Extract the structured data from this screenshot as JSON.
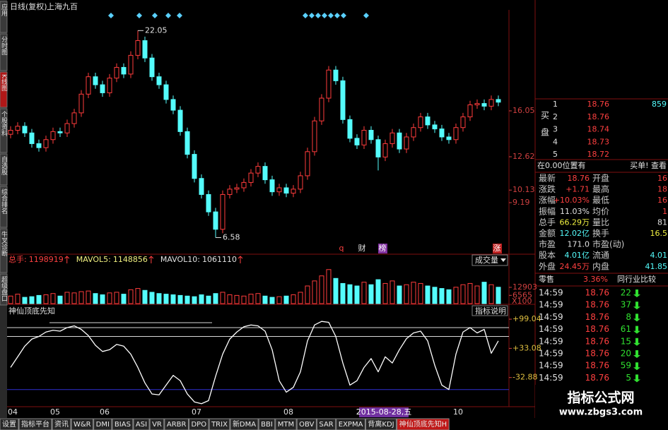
{
  "header": {
    "period": "日线(复权)",
    "stock": "上海九百"
  },
  "side_tabs": [
    "应用",
    "分时图",
    "K线图",
    "个股资料",
    "自选股",
    "综合排名",
    "牛叉诊断",
    "超级盘口"
  ],
  "price_chart": {
    "candles": [
      [
        14.3,
        14.9,
        14.0,
        14.6
      ],
      [
        14.6,
        15.2,
        14.3,
        14.9
      ],
      [
        14.9,
        15.2,
        14.1,
        14.4
      ],
      [
        14.4,
        14.7,
        13.3,
        13.6
      ],
      [
        13.6,
        13.9,
        13.0,
        13.3
      ],
      [
        13.3,
        14.2,
        13.0,
        13.9
      ],
      [
        13.9,
        14.8,
        13.6,
        14.5
      ],
      [
        14.5,
        14.8,
        14.1,
        14.4
      ],
      [
        14.4,
        15.4,
        14.1,
        15.1
      ],
      [
        15.1,
        16.2,
        14.8,
        15.9
      ],
      [
        15.9,
        17.6,
        15.6,
        17.3
      ],
      [
        17.3,
        18.9,
        17.0,
        18.6
      ],
      [
        18.6,
        18.9,
        17.7,
        18.0
      ],
      [
        18.0,
        18.3,
        17.1,
        17.4
      ],
      [
        17.4,
        18.8,
        17.1,
        18.5
      ],
      [
        18.5,
        19.6,
        18.2,
        19.3
      ],
      [
        19.3,
        19.6,
        18.5,
        18.8
      ],
      [
        18.8,
        20.5,
        18.5,
        20.2
      ],
      [
        20.2,
        22.05,
        19.9,
        21.3
      ],
      [
        21.3,
        21.6,
        19.7,
        20.0
      ],
      [
        20.0,
        20.3,
        18.3,
        18.6
      ],
      [
        18.6,
        18.9,
        17.7,
        18.0
      ],
      [
        18.0,
        18.3,
        16.6,
        16.9
      ],
      [
        16.9,
        17.2,
        15.8,
        16.1
      ],
      [
        16.1,
        16.4,
        14.2,
        14.5
      ],
      [
        14.5,
        14.8,
        12.5,
        12.8
      ],
      [
        12.8,
        13.1,
        10.7,
        11.0
      ],
      [
        11.0,
        11.3,
        9.5,
        9.8
      ],
      [
        9.8,
        10.1,
        8.2,
        8.5
      ],
      [
        8.5,
        8.8,
        6.58,
        7.2
      ],
      [
        7.2,
        10.1,
        6.9,
        9.8
      ],
      [
        9.8,
        10.5,
        9.5,
        10.2
      ],
      [
        10.2,
        10.6,
        9.9,
        10.3
      ],
      [
        10.3,
        11.0,
        10.0,
        10.7
      ],
      [
        10.7,
        11.7,
        10.4,
        11.4
      ],
      [
        11.4,
        12.2,
        11.1,
        11.9
      ],
      [
        11.9,
        12.2,
        10.6,
        10.9
      ],
      [
        10.9,
        11.2,
        9.7,
        10.0
      ],
      [
        10.0,
        10.6,
        9.7,
        10.3
      ],
      [
        10.3,
        10.6,
        9.6,
        9.9
      ],
      [
        9.9,
        10.5,
        9.6,
        10.2
      ],
      [
        10.2,
        11.5,
        9.9,
        11.2
      ],
      [
        11.2,
        13.3,
        10.9,
        13.0
      ],
      [
        13.0,
        15.6,
        12.7,
        15.3
      ],
      [
        15.3,
        17.3,
        15.0,
        17.0
      ],
      [
        17.0,
        19.4,
        16.7,
        19.1
      ],
      [
        19.1,
        19.4,
        18.0,
        18.3
      ],
      [
        18.3,
        18.6,
        15.1,
        15.4
      ],
      [
        15.4,
        15.7,
        13.7,
        14.0
      ],
      [
        14.0,
        14.3,
        13.2,
        13.5
      ],
      [
        13.5,
        14.9,
        13.2,
        14.6
      ],
      [
        14.6,
        14.9,
        13.6,
        13.9
      ],
      [
        13.9,
        14.2,
        11.6,
        12.6
      ],
      [
        12.6,
        13.9,
        12.3,
        13.6
      ],
      [
        13.6,
        14.7,
        13.3,
        14.4
      ],
      [
        14.4,
        14.7,
        12.9,
        13.2
      ],
      [
        13.2,
        14.4,
        12.9,
        14.1
      ],
      [
        14.1,
        15.1,
        13.8,
        14.8
      ],
      [
        14.8,
        15.9,
        14.5,
        15.6
      ],
      [
        15.6,
        15.9,
        14.7,
        15.0
      ],
      [
        15.0,
        15.3,
        14.4,
        14.7
      ],
      [
        14.7,
        15.0,
        13.8,
        14.1
      ],
      [
        14.1,
        14.4,
        13.6,
        13.9
      ],
      [
        13.9,
        15.1,
        13.6,
        14.8
      ],
      [
        14.8,
        15.9,
        14.5,
        15.6
      ],
      [
        15.6,
        16.8,
        15.3,
        16.5
      ],
      [
        16.5,
        16.9,
        16.2,
        16.6
      ],
      [
        16.6,
        16.9,
        16.1,
        16.4
      ],
      [
        16.4,
        17.2,
        16.1,
        16.9
      ],
      [
        16.9,
        17.2,
        16.4,
        16.7
      ]
    ],
    "categories": [
      "04",
      null,
      null,
      null,
      null,
      null,
      "05",
      null,
      null,
      null,
      null,
      null,
      null,
      "06",
      null,
      null,
      null,
      null,
      null,
      null,
      null,
      null,
      null,
      null,
      null,
      null,
      "07",
      null,
      null,
      null,
      null,
      null,
      null,
      null,
      null,
      null,
      null,
      null,
      null,
      "08",
      null,
      null,
      null,
      null,
      null,
      null,
      null,
      null,
      null,
      null,
      null,
      null,
      null,
      null,
      null,
      null,
      null,
      null,
      null,
      null,
      null,
      null,
      null,
      "10",
      null,
      null,
      null,
      null,
      null,
      null
    ],
    "ylim": [
      6.13,
      23.28
    ],
    "yticks": [
      16.05,
      12.62,
      10.13,
      9.19
    ],
    "high_annotation": 22.05,
    "low_annotation": 6.58,
    "up_color": "#ff3c3c",
    "down_color": "#54fcfc",
    "markers": [
      "q",
      "财",
      "榜",
      "涨"
    ],
    "cursor_date": "2015-08-28,五"
  },
  "volume_chart": {
    "header": [
      {
        "name": "总手:",
        "value": 1198919
      },
      {
        "name": "MAVOL5:",
        "value": 1148856
      },
      {
        "name": "MAVOL10:",
        "value": 1061110
      }
    ],
    "selector": "成交量",
    "values": [
      6000,
      7500,
      5000,
      5500,
      6500,
      7000,
      8000,
      6000,
      9000,
      8500,
      9500,
      10000,
      8000,
      7000,
      8500,
      9000,
      7500,
      11000,
      12000,
      10500,
      9000,
      8000,
      7500,
      7000,
      6500,
      6000,
      5500,
      7000,
      6000,
      8000,
      9000,
      7000,
      6500,
      6000,
      7500,
      8000,
      6000,
      5000,
      5500,
      6000,
      7000,
      9000,
      14000,
      18000,
      22000,
      27000,
      20000,
      16000,
      15000,
      14000,
      17000,
      15000,
      19000,
      16000,
      18000,
      14000,
      15000,
      17000,
      16000,
      14000,
      13000,
      12000,
      11000,
      13000,
      15000,
      16000,
      14000,
      17000,
      15000,
      13000
    ],
    "ylim": [
      0,
      28000
    ],
    "yticks": [
      12903,
      6565
    ],
    "unit": "X100"
  },
  "indicator_chart": {
    "name": "神仙顶底先知",
    "button": "指标说明",
    "values": [
      -10,
      14,
      38,
      54,
      60,
      70,
      74,
      72,
      80,
      84,
      76,
      62,
      40,
      26,
      30,
      42,
      38,
      20,
      -10,
      -45,
      -70,
      -72,
      -50,
      -28,
      -40,
      -70,
      -88,
      -92,
      -85,
      -30,
      20,
      54,
      70,
      82,
      86,
      84,
      72,
      30,
      -40,
      -66,
      -55,
      -20,
      50,
      86,
      94,
      92,
      60,
      0,
      -50,
      -40,
      -10,
      10,
      -20,
      14,
      0,
      30,
      55,
      68,
      72,
      50,
      -5,
      -50,
      -60,
      20,
      70,
      80,
      68,
      76,
      22,
      50
    ],
    "ylim": [
      -97.2,
      105.5
    ],
    "yticks": [
      {
        "value": 99.04,
        "label": "+99.04"
      },
      {
        "value": 33.08,
        "label": "+33.08"
      },
      -32.88
    ],
    "levels": [
      80,
      60,
      -60
    ],
    "level_colors": [
      "#d8d8d8",
      "#d8d8d8",
      "#3030d0"
    ],
    "line_color": "#ffffff"
  },
  "order_book": {
    "side_label": "买盘",
    "rows": [
      {
        "level": 1,
        "price": 18.76,
        "volume": 859
      },
      {
        "level": 2,
        "price": 18.76
      },
      {
        "level": 3,
        "price": 18.74
      },
      {
        "level": 4,
        "price": 18.73
      },
      {
        "level": 5,
        "price": 18.72
      }
    ]
  },
  "notice": [
    "在0.00位置有",
    "买单! 查看"
  ],
  "quote": [
    [
      "最新",
      "18.76",
      "开盘",
      "16"
    ],
    [
      "涨跌",
      "+1.71",
      "最高",
      "18"
    ],
    [
      "涨幅",
      "+10.03%",
      "最低",
      "16"
    ],
    [
      "振幅",
      "11.03%",
      "均价",
      "1"
    ],
    [
      "总手",
      "66.29万",
      "量比",
      "81"
    ],
    [
      "金额",
      "12.02亿",
      "换手",
      "16.5"
    ],
    [
      "市盈",
      "171.0",
      "市盈(动)",
      ""
    ],
    [
      "股本",
      "4.01亿",
      "流通",
      "4.01"
    ],
    [
      "外盘",
      "24.45万",
      "内盘",
      "41.85"
    ]
  ],
  "retail": [
    "零售",
    "3.36%",
    "同行业比较"
  ],
  "ticks": [
    {
      "time": "14:59",
      "price": "18.76",
      "volume": "22"
    },
    {
      "time": "14:59",
      "price": "18.76",
      "volume": "37"
    },
    {
      "time": "14:59",
      "price": "18.76",
      "volume": "8"
    },
    {
      "time": "14:59",
      "price": "18.76",
      "volume": "61"
    },
    {
      "time": "14:59",
      "price": "18.76",
      "volume": "15"
    },
    {
      "time": "14:59",
      "price": "18.76",
      "volume": "20"
    },
    {
      "time": "14:59",
      "price": "18.76",
      "volume": "59"
    },
    {
      "time": "14:59",
      "price": "18.76",
      "volume": "5"
    }
  ],
  "bottom_tabs": [
    "设置",
    "指标平台",
    "资讯",
    "W&R",
    "DMI",
    "BIAS",
    "ASI",
    "VR",
    "ARBR",
    "DPO",
    "TRIX",
    "新DMA",
    "BBI",
    "MTM",
    "OBV",
    "SAR",
    "EXPMA",
    "背离KDJ",
    "神仙顶底先知H"
  ],
  "watermark": [
    "指标公式网",
    "www.zbgs3.com"
  ]
}
